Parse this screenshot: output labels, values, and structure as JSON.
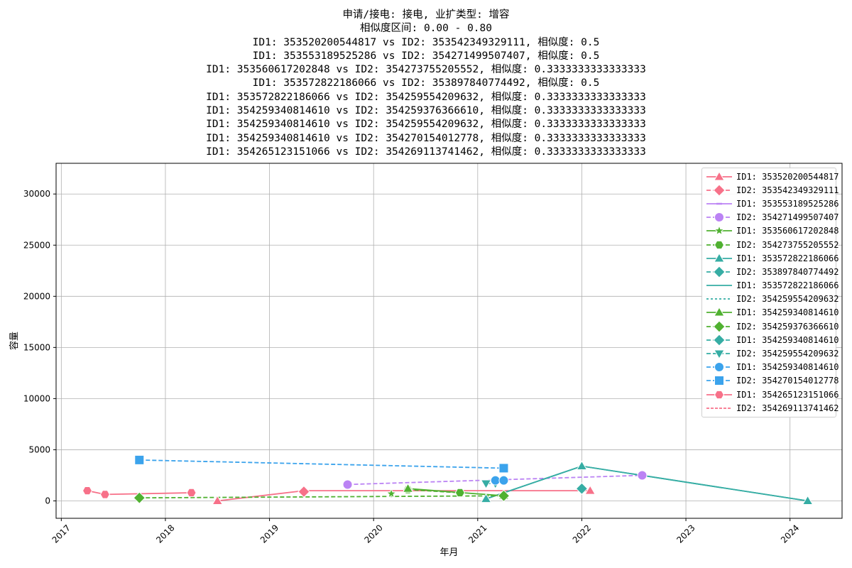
{
  "chart_data": {
    "type": "line",
    "title_lines": [
      "申请/接电: 接电, 业扩类型: 增容",
      "相似度区间: 0.00 - 0.80",
      "ID1: 353520200544817 vs ID2: 353542349329111, 相似度: 0.5",
      "ID1: 353553189525286 vs ID2: 354271499507407, 相似度: 0.5",
      "ID1: 353560617202848 vs ID2: 354273755205552, 相似度: 0.3333333333333333",
      "ID1: 353572822186066 vs ID2: 353897840774492, 相似度: 0.5",
      "ID1: 353572822186066 vs ID2: 354259554209632, 相似度: 0.3333333333333333",
      "ID1: 354259340814610 vs ID2: 354259376366610, 相似度: 0.3333333333333333",
      "ID1: 354259340814610 vs ID2: 354259554209632, 相似度: 0.3333333333333333",
      "ID1: 354259340814610 vs ID2: 354270154012778, 相似度: 0.3333333333333333",
      "ID1: 354265123151066 vs ID2: 354269113741462, 相似度: 0.3333333333333333"
    ],
    "xlabel": "年月",
    "ylabel": "容量",
    "xlim": [
      2016.95,
      2024.5
    ],
    "ylim": [
      -1700,
      33000
    ],
    "x_ticks": [
      2017,
      2018,
      2019,
      2020,
      2021,
      2022,
      2023,
      2024
    ],
    "y_ticks": [
      0,
      5000,
      10000,
      15000,
      20000,
      25000,
      30000
    ],
    "grid": true,
    "legend_position": "top-right",
    "series": [
      {
        "name": "ID1: 353520200544817",
        "color": "#f77189",
        "dash": "",
        "marker": "triangle",
        "x": [
          2018.5,
          2019.33,
          2022.08
        ],
        "y": [
          0,
          1000,
          1000
        ]
      },
      {
        "name": "ID2: 353542349329111",
        "color": "#f77189",
        "dash": "6,3",
        "marker": "diamond",
        "x": [
          2019.33
        ],
        "y": [
          900
        ]
      },
      {
        "name": "ID1: 353553189525286",
        "color": "#bb83f4",
        "dash": "",
        "marker": "none",
        "x": [],
        "y": []
      },
      {
        "name": "ID2: 354271499507407",
        "color": "#bb83f4",
        "dash": "6,3",
        "marker": "circle",
        "x": [
          2019.75,
          2022.58
        ],
        "y": [
          1600,
          2500
        ]
      },
      {
        "name": "ID1: 353560617202848",
        "color": "#50b131",
        "dash": "",
        "marker": "star",
        "x": [
          2020.17
        ],
        "y": [
          700
        ]
      },
      {
        "name": "ID2: 354273755205552",
        "color": "#50b131",
        "dash": "6,3",
        "marker": "hexagon",
        "x": [
          2020.33,
          2020.83
        ],
        "y": [
          1100,
          800
        ]
      },
      {
        "name": "ID1: 353572822186066",
        "color": "#36ada4",
        "dash": "",
        "marker": "triangle",
        "x": [
          2021.08,
          2022.0,
          2024.17
        ],
        "y": [
          200,
          3400,
          0
        ]
      },
      {
        "name": "ID2: 353897840774492",
        "color": "#36ada4",
        "dash": "6,3",
        "marker": "diamond",
        "x": [
          2022.0
        ],
        "y": [
          1200
        ]
      },
      {
        "name": "ID1: 353572822186066",
        "color": "#36ada4",
        "dash": "",
        "marker": "none",
        "x": [
          2021.08,
          2022.0,
          2024.17
        ],
        "y": [
          200,
          3400,
          0
        ]
      },
      {
        "name": "ID2: 354259554209632",
        "color": "#36ada4",
        "dash": "3,3",
        "marker": "none",
        "x": [],
        "y": []
      },
      {
        "name": "ID1: 354259340814610",
        "color": "#50b131",
        "dash": "",
        "marker": "triangle",
        "x": [
          2020.33,
          2021.25
        ],
        "y": [
          1200,
          500
        ]
      },
      {
        "name": "ID2: 354259376366610",
        "color": "#50b131",
        "dash": "6,3",
        "marker": "diamond",
        "x": [
          2017.75,
          2021.25
        ],
        "y": [
          300,
          500
        ]
      },
      {
        "name": "ID1: 354259340814610",
        "color": "#36ada4",
        "dash": "6,3",
        "marker": "diamond",
        "x": [],
        "y": []
      },
      {
        "name": "ID2: 354259554209632",
        "color": "#36ada4",
        "dash": "6,3",
        "marker": "triangle-down",
        "x": [
          2021.08,
          2021.17
        ],
        "y": [
          1700,
          1700
        ]
      },
      {
        "name": "ID1: 354259340814610",
        "color": "#3ba3ec",
        "dash": "6,3",
        "marker": "circle",
        "x": [
          2021.17,
          2021.25
        ],
        "y": [
          2000,
          2000
        ]
      },
      {
        "name": "ID2: 354270154012778",
        "color": "#3ba3ec",
        "dash": "6,3",
        "marker": "square",
        "x": [
          2017.75,
          2021.25
        ],
        "y": [
          4000,
          3200
        ]
      },
      {
        "name": "ID1: 354265123151066",
        "color": "#f77189",
        "dash": "",
        "marker": "hexagon",
        "x": [
          2017.25,
          2017.42,
          2018.25
        ],
        "y": [
          1000,
          630,
          800
        ]
      },
      {
        "name": "ID2: 354269113741462",
        "color": "#f77189",
        "dash": "4,2",
        "marker": "none",
        "x": [],
        "y": []
      }
    ]
  }
}
